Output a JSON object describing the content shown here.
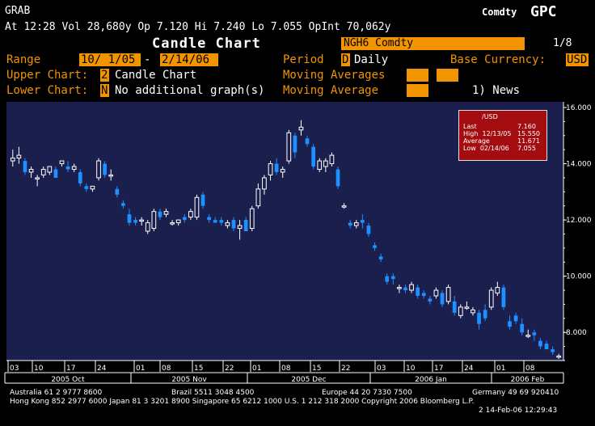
{
  "header": {
    "left_label": "GRAB",
    "right_label_small": "Comdty",
    "right_label_big": "GPC",
    "quote_line": "At 12:28 Vol 28,680y Op 7.120 Hi 7.240 Lo 7.055 OpInt 70,062y",
    "title": "Candle Chart",
    "security": "NGH6 Comdty",
    "page": "1/8"
  },
  "controls": {
    "range_label": "Range",
    "range_start": "10/ 1/05",
    "range_sep": "-",
    "range_end": "2/14/06",
    "period_label": "Period",
    "period_code": "D",
    "period_value": "Daily",
    "base_currency_label": "Base Currency:",
    "base_currency_value": "USD",
    "upper_chart_label": "Upper Chart:",
    "upper_chart_code": "2",
    "upper_chart_value": "Candle Chart",
    "moving_averages_label": "Moving Averages",
    "lower_chart_label": "Lower Chart:",
    "lower_chart_code": "N",
    "lower_chart_value": "No additional graph(s)",
    "moving_average_label": "Moving Average",
    "news_label": "1) News"
  },
  "legend": {
    "currency": "/USD",
    "rows": [
      {
        "label": "Last",
        "value": "7.160"
      },
      {
        "label": "High  12/13/05",
        "value": "15.550"
      },
      {
        "label": "Average",
        "value": "11.671"
      },
      {
        "label": "Low  02/14/06",
        "value": "7.055"
      }
    ]
  },
  "chart_data": {
    "type": "candlestick",
    "y_ticks": [
      "16.000",
      "14.000",
      "12.000",
      "10.000",
      "8.000"
    ],
    "ylim": [
      7.0,
      16.2
    ],
    "x_tick_labels": [
      "03",
      "10",
      "17",
      "24",
      "01",
      "08",
      "15",
      "22",
      "01",
      "08",
      "15",
      "22",
      "03",
      "10",
      "17",
      "24",
      "01",
      "08"
    ],
    "months": [
      "2005 Oct",
      "2005 Nov",
      "2005 Dec",
      "2006 Jan",
      "2006 Feb"
    ],
    "colors": {
      "background": "#1b1f4e",
      "up": "#ffffff",
      "down": "#1e90ff"
    },
    "candles": [
      {
        "o": 14.1,
        "h": 14.5,
        "l": 13.9,
        "c": 14.2
      },
      {
        "o": 14.2,
        "h": 14.6,
        "l": 14.0,
        "c": 14.3
      },
      {
        "o": 14.1,
        "h": 14.2,
        "l": 13.6,
        "c": 13.7
      },
      {
        "o": 13.7,
        "h": 13.9,
        "l": 13.5,
        "c": 13.8
      },
      {
        "o": 13.5,
        "h": 13.6,
        "l": 13.2,
        "c": 13.5
      },
      {
        "o": 13.6,
        "h": 13.9,
        "l": 13.5,
        "c": 13.8
      },
      {
        "o": 13.7,
        "h": 13.9,
        "l": 13.6,
        "c": 13.9
      },
      {
        "o": 13.8,
        "h": 13.9,
        "l": 13.5,
        "c": 13.5
      },
      {
        "o": 14.0,
        "h": 14.1,
        "l": 13.9,
        "c": 14.1
      },
      {
        "o": 13.9,
        "h": 14.1,
        "l": 13.7,
        "c": 13.8
      },
      {
        "o": 13.8,
        "h": 14.0,
        "l": 13.7,
        "c": 13.9
      },
      {
        "o": 13.7,
        "h": 13.8,
        "l": 13.2,
        "c": 13.3
      },
      {
        "o": 13.2,
        "h": 13.3,
        "l": 13.0,
        "c": 13.1
      },
      {
        "o": 13.1,
        "h": 13.2,
        "l": 13.0,
        "c": 13.2
      },
      {
        "o": 13.5,
        "h": 14.2,
        "l": 13.4,
        "c": 14.1
      },
      {
        "o": 14.0,
        "h": 14.1,
        "l": 13.5,
        "c": 13.6
      },
      {
        "o": 13.6,
        "h": 13.8,
        "l": 13.4,
        "c": 13.6
      },
      {
        "o": 13.1,
        "h": 13.2,
        "l": 12.8,
        "c": 12.9
      },
      {
        "o": 12.6,
        "h": 12.7,
        "l": 12.4,
        "c": 12.5
      },
      {
        "o": 12.2,
        "h": 12.4,
        "l": 11.8,
        "c": 11.9
      },
      {
        "o": 12.0,
        "h": 12.1,
        "l": 11.8,
        "c": 11.9
      },
      {
        "o": 12.0,
        "h": 12.1,
        "l": 11.8,
        "c": 12.0
      },
      {
        "o": 11.6,
        "h": 12.0,
        "l": 11.5,
        "c": 11.9
      },
      {
        "o": 11.7,
        "h": 12.4,
        "l": 11.6,
        "c": 12.3
      },
      {
        "o": 12.3,
        "h": 12.4,
        "l": 12.0,
        "c": 12.1
      },
      {
        "o": 12.2,
        "h": 12.4,
        "l": 12.1,
        "c": 12.3
      },
      {
        "o": 11.9,
        "h": 12.0,
        "l": 11.8,
        "c": 11.9
      },
      {
        "o": 11.9,
        "h": 12.0,
        "l": 11.8,
        "c": 12.0
      },
      {
        "o": 12.1,
        "h": 12.2,
        "l": 11.9,
        "c": 12.0
      },
      {
        "o": 12.1,
        "h": 12.4,
        "l": 12.0,
        "c": 12.3
      },
      {
        "o": 12.1,
        "h": 12.9,
        "l": 12.0,
        "c": 12.8
      },
      {
        "o": 12.9,
        "h": 13.0,
        "l": 12.4,
        "c": 12.5
      },
      {
        "o": 12.1,
        "h": 12.2,
        "l": 11.9,
        "c": 12.0
      },
      {
        "o": 12.0,
        "h": 12.1,
        "l": 11.9,
        "c": 11.9
      },
      {
        "o": 12.0,
        "h": 12.1,
        "l": 11.8,
        "c": 11.9
      },
      {
        "o": 11.8,
        "h": 12.0,
        "l": 11.7,
        "c": 11.9
      },
      {
        "o": 12.0,
        "h": 12.1,
        "l": 11.6,
        "c": 11.7
      },
      {
        "o": 11.7,
        "h": 12.0,
        "l": 11.3,
        "c": 11.8
      },
      {
        "o": 12.0,
        "h": 12.1,
        "l": 11.6,
        "c": 11.6
      },
      {
        "o": 11.7,
        "h": 12.5,
        "l": 11.6,
        "c": 12.4
      },
      {
        "o": 12.5,
        "h": 13.3,
        "l": 12.4,
        "c": 13.1
      },
      {
        "o": 13.1,
        "h": 13.6,
        "l": 12.9,
        "c": 13.5
      },
      {
        "o": 13.6,
        "h": 14.1,
        "l": 13.4,
        "c": 14.0
      },
      {
        "o": 14.0,
        "h": 14.2,
        "l": 13.6,
        "c": 13.7
      },
      {
        "o": 13.7,
        "h": 13.9,
        "l": 13.5,
        "c": 13.8
      },
      {
        "o": 14.1,
        "h": 15.2,
        "l": 14.0,
        "c": 15.1
      },
      {
        "o": 15.0,
        "h": 15.1,
        "l": 14.2,
        "c": 14.4
      },
      {
        "o": 15.2,
        "h": 15.55,
        "l": 15.0,
        "c": 15.3
      },
      {
        "o": 14.9,
        "h": 15.0,
        "l": 14.6,
        "c": 14.7
      },
      {
        "o": 14.6,
        "h": 14.7,
        "l": 13.8,
        "c": 13.9
      },
      {
        "o": 13.8,
        "h": 14.2,
        "l": 13.7,
        "c": 14.1
      },
      {
        "o": 13.9,
        "h": 14.2,
        "l": 13.7,
        "c": 14.1
      },
      {
        "o": 14.0,
        "h": 14.4,
        "l": 13.9,
        "c": 14.3
      },
      {
        "o": 13.8,
        "h": 13.9,
        "l": 13.1,
        "c": 13.2
      },
      {
        "o": 12.5,
        "h": 12.6,
        "l": 12.4,
        "c": 12.5
      },
      {
        "o": 11.9,
        "h": 12.0,
        "l": 11.7,
        "c": 11.8
      },
      {
        "o": 11.8,
        "h": 12.0,
        "l": 11.7,
        "c": 11.9
      },
      {
        "o": 12.0,
        "h": 12.2,
        "l": 11.7,
        "c": 11.9
      },
      {
        "o": 11.8,
        "h": 11.9,
        "l": 11.4,
        "c": 11.5
      },
      {
        "o": 11.1,
        "h": 11.2,
        "l": 10.9,
        "c": 11.0
      },
      {
        "o": 10.7,
        "h": 10.8,
        "l": 10.5,
        "c": 10.6
      },
      {
        "o": 10.0,
        "h": 10.1,
        "l": 9.7,
        "c": 9.8
      },
      {
        "o": 10.0,
        "h": 10.1,
        "l": 9.7,
        "c": 9.9
      },
      {
        "o": 9.6,
        "h": 9.7,
        "l": 9.4,
        "c": 9.6
      },
      {
        "o": 9.6,
        "h": 9.7,
        "l": 9.4,
        "c": 9.5
      },
      {
        "o": 9.5,
        "h": 9.8,
        "l": 9.4,
        "c": 9.7
      },
      {
        "o": 9.6,
        "h": 9.7,
        "l": 9.2,
        "c": 9.3
      },
      {
        "o": 9.4,
        "h": 9.5,
        "l": 9.2,
        "c": 9.3
      },
      {
        "o": 9.2,
        "h": 9.3,
        "l": 9.0,
        "c": 9.1
      },
      {
        "o": 9.3,
        "h": 9.6,
        "l": 9.2,
        "c": 9.5
      },
      {
        "o": 9.4,
        "h": 9.5,
        "l": 8.9,
        "c": 9.0
      },
      {
        "o": 9.1,
        "h": 9.7,
        "l": 9.0,
        "c": 9.6
      },
      {
        "o": 9.1,
        "h": 9.3,
        "l": 8.6,
        "c": 8.7
      },
      {
        "o": 8.6,
        "h": 9.0,
        "l": 8.5,
        "c": 8.9
      },
      {
        "o": 8.9,
        "h": 9.1,
        "l": 8.8,
        "c": 8.9
      },
      {
        "o": 8.7,
        "h": 8.9,
        "l": 8.6,
        "c": 8.8
      },
      {
        "o": 8.7,
        "h": 8.8,
        "l": 8.1,
        "c": 8.3
      },
      {
        "o": 8.8,
        "h": 9.0,
        "l": 8.4,
        "c": 8.5
      },
      {
        "o": 8.9,
        "h": 9.6,
        "l": 8.8,
        "c": 9.5
      },
      {
        "o": 9.4,
        "h": 9.8,
        "l": 9.3,
        "c": 9.6
      },
      {
        "o": 9.6,
        "h": 9.7,
        "l": 8.8,
        "c": 8.9
      },
      {
        "o": 8.4,
        "h": 8.6,
        "l": 8.1,
        "c": 8.2
      },
      {
        "o": 8.6,
        "h": 8.7,
        "l": 8.3,
        "c": 8.4
      },
      {
        "o": 8.3,
        "h": 8.5,
        "l": 7.9,
        "c": 8.0
      },
      {
        "o": 7.9,
        "h": 8.1,
        "l": 7.8,
        "c": 7.9
      },
      {
        "o": 8.0,
        "h": 8.1,
        "l": 7.7,
        "c": 7.9
      },
      {
        "o": 7.7,
        "h": 7.8,
        "l": 7.4,
        "c": 7.5
      },
      {
        "o": 7.6,
        "h": 7.7,
        "l": 7.4,
        "c": 7.4
      },
      {
        "o": 7.4,
        "h": 7.5,
        "l": 7.2,
        "c": 7.3
      },
      {
        "o": 7.12,
        "h": 7.24,
        "l": 7.055,
        "c": 7.16
      }
    ]
  },
  "footer": {
    "line1": [
      "Australia 61 2 9777 8600",
      "Brazil 5511 3048 4500",
      "Europe 44 20 7330 7500",
      "Germany 49 69 920410"
    ],
    "line2": "Hong Kong 852 2977 6000 Japan 81 3 3201 8900 Singapore 65 6212 1000 U.S. 1 212 318 2000 Copyright 2006 Bloomberg L.P.",
    "line3": "2 14-Feb-06 12:29:43"
  }
}
